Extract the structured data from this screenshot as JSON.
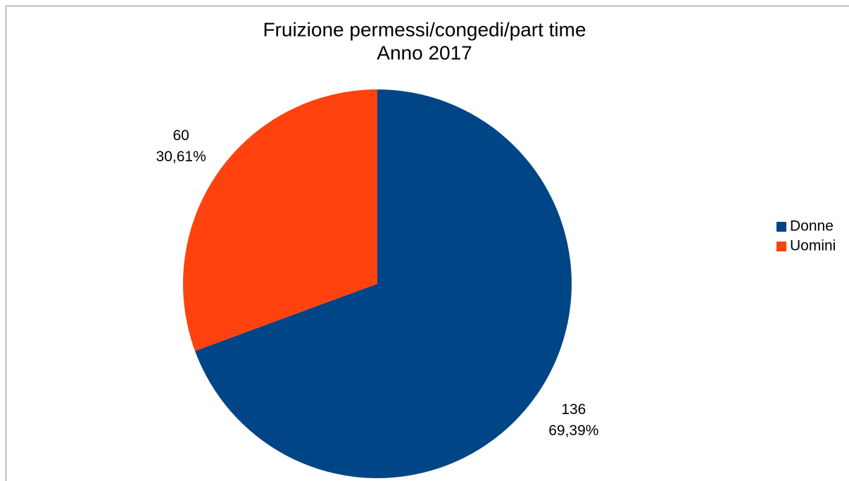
{
  "chart_data": {
    "type": "pie",
    "title": [
      "Fruizione permessi/congedi/part time",
      "Anno 2017"
    ],
    "categories": [
      "Donne",
      "Uomini"
    ],
    "values": [
      136,
      60
    ],
    "percentage_labels": [
      "69,39%",
      "30,61%"
    ],
    "colors": [
      "#004586",
      "#ff420e"
    ],
    "legend": "right"
  }
}
